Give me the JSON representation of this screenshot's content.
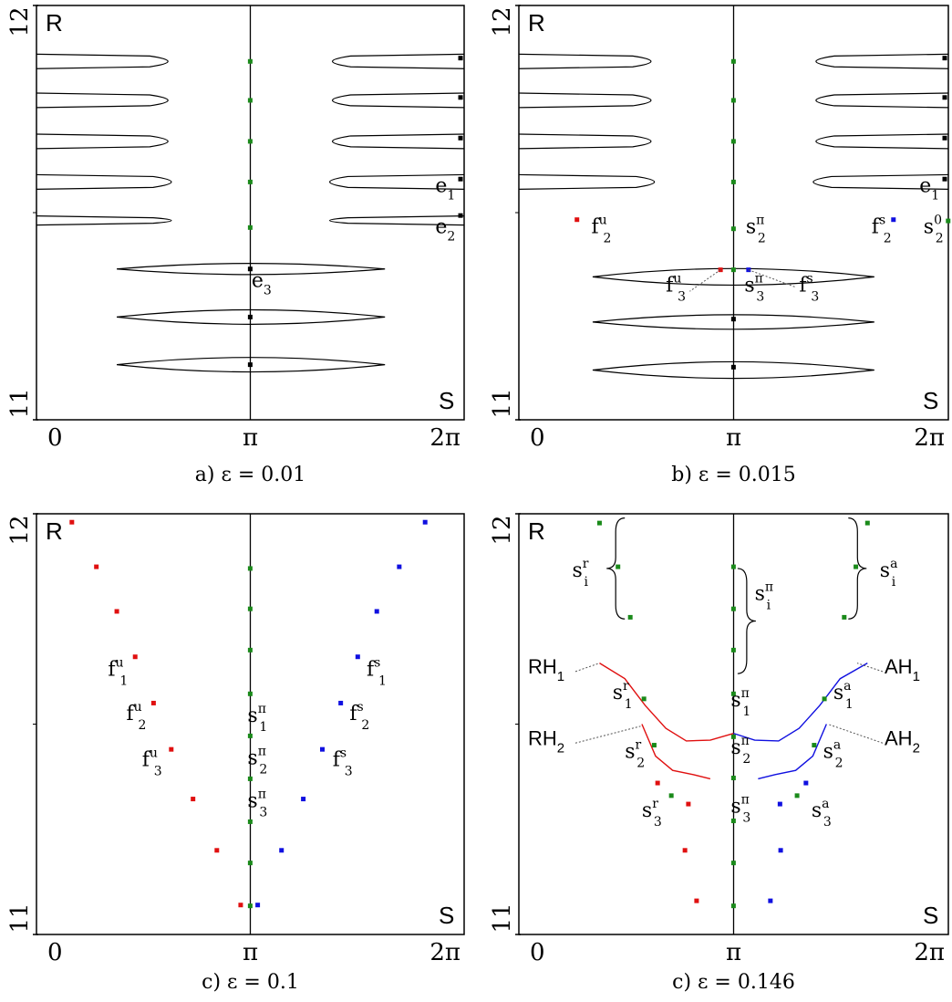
{
  "colors": {
    "green": "#1a8a1a",
    "red": "#e01010",
    "blue": "#1010e0",
    "black": "#000000"
  },
  "axes": {
    "x_ticks": [
      "0",
      "π",
      "2π"
    ],
    "y_min_label": "11",
    "y_max_label": "12",
    "y_axis_letter": "R",
    "x_axis_letter": "S"
  },
  "chart_data": [
    {
      "type": "scatter",
      "caption_prefix": "a)",
      "caption_eq": "ε = 0.01",
      "xlim": [
        0,
        6.2832
      ],
      "ylim": [
        11,
        12
      ],
      "xlabel": "S",
      "ylabel": "R",
      "vertical_line_x": 3.1416,
      "series": [
        {
          "color": "green",
          "points": [
            [
              3.14,
              11.865
            ],
            [
              3.14,
              11.771
            ],
            [
              3.14,
              11.672
            ],
            [
              3.14,
              11.574
            ],
            [
              3.14,
              11.464
            ]
          ]
        },
        {
          "color": "black",
          "points": [
            [
              3.14,
              11.364
            ],
            [
              3.14,
              11.248
            ],
            [
              3.14,
              11.133
            ],
            [
              6.23,
              11.873
            ],
            [
              6.23,
              11.778
            ],
            [
              6.23,
              11.68
            ],
            [
              6.23,
              11.581
            ],
            [
              6.23,
              11.493
            ]
          ]
        }
      ],
      "islands": [
        {
          "x": [
            0.0,
            2.2
          ],
          "y": 11.865,
          "h": 0.035
        },
        {
          "x": [
            0.0,
            2.2
          ],
          "y": 11.771,
          "h": 0.035
        },
        {
          "x": [
            0.0,
            2.2
          ],
          "y": 11.672,
          "h": 0.035
        },
        {
          "x": [
            0.0,
            2.25
          ],
          "y": 11.574,
          "h": 0.035
        },
        {
          "x": [
            0.0,
            2.25
          ],
          "y": 11.481,
          "h": 0.022
        },
        {
          "x": [
            4.08,
            6.28
          ],
          "y": 11.865,
          "h": 0.035
        },
        {
          "x": [
            4.08,
            6.28
          ],
          "y": 11.771,
          "h": 0.035
        },
        {
          "x": [
            4.08,
            6.28
          ],
          "y": 11.672,
          "h": 0.035
        },
        {
          "x": [
            4.04,
            6.28
          ],
          "y": 11.574,
          "h": 0.035
        },
        {
          "x": [
            4.04,
            6.28
          ],
          "y": 11.481,
          "h": 0.022
        },
        {
          "x": [
            1.18,
            5.12
          ],
          "y": 11.364,
          "h": 0.027
        },
        {
          "x": [
            1.18,
            5.12
          ],
          "y": 11.248,
          "h": 0.035
        },
        {
          "x": [
            1.18,
            5.12
          ],
          "y": 11.133,
          "h": 0.035
        }
      ],
      "annotations": [
        {
          "text": "e",
          "sub": "1",
          "x": 5.86,
          "y": 11.55
        },
        {
          "text": "e",
          "sub": "2",
          "x": 5.86,
          "y": 11.45
        },
        {
          "text": "e",
          "sub": "3",
          "x": 3.16,
          "y": 11.32
        }
      ]
    },
    {
      "type": "scatter",
      "caption_prefix": "b)",
      "caption_eq": "ε = 0.015",
      "xlim": [
        0,
        6.2832
      ],
      "ylim": [
        11,
        12
      ],
      "xlabel": "S",
      "ylabel": "R",
      "vertical_line_x": 3.1416,
      "series": [
        {
          "color": "green",
          "points": [
            [
              3.14,
              11.865
            ],
            [
              3.14,
              11.771
            ],
            [
              3.14,
              11.672
            ],
            [
              3.14,
              11.574
            ],
            [
              3.14,
              11.461
            ],
            [
              3.14,
              11.362
            ],
            [
              6.28,
              11.48
            ]
          ]
        },
        {
          "color": "red",
          "points": [
            [
              0.85,
              11.483
            ],
            [
              2.95,
              11.362
            ]
          ]
        },
        {
          "color": "blue",
          "points": [
            [
              5.48,
              11.483
            ],
            [
              3.36,
              11.362
            ]
          ]
        },
        {
          "color": "black",
          "points": [
            [
              3.14,
              11.243
            ],
            [
              3.14,
              11.127
            ],
            [
              6.23,
              11.873
            ],
            [
              6.23,
              11.778
            ],
            [
              6.23,
              11.68
            ],
            [
              6.23,
              11.581
            ]
          ]
        }
      ],
      "islands": [
        {
          "x": [
            0.0,
            2.2
          ],
          "y": 11.865,
          "h": 0.035
        },
        {
          "x": [
            0.0,
            2.2
          ],
          "y": 11.771,
          "h": 0.035
        },
        {
          "x": [
            0.0,
            2.2
          ],
          "y": 11.672,
          "h": 0.035
        },
        {
          "x": [
            0.0,
            2.25
          ],
          "y": 11.574,
          "h": 0.035
        },
        {
          "x": [
            4.08,
            6.28
          ],
          "y": 11.865,
          "h": 0.035
        },
        {
          "x": [
            4.08,
            6.28
          ],
          "y": 11.771,
          "h": 0.035
        },
        {
          "x": [
            4.08,
            6.28
          ],
          "y": 11.672,
          "h": 0.035
        },
        {
          "x": [
            4.04,
            6.28
          ],
          "y": 11.574,
          "h": 0.035
        },
        {
          "x": [
            1.08,
            5.2
          ],
          "y": 11.345,
          "h": 0.04
        },
        {
          "x": [
            1.08,
            5.2
          ],
          "y": 11.236,
          "h": 0.035
        },
        {
          "x": [
            1.08,
            5.2
          ],
          "y": 11.12,
          "h": 0.04
        }
      ],
      "annotations": [
        {
          "text": "e",
          "sub": "1",
          "x": 5.86,
          "y": 11.55
        },
        {
          "text": "f",
          "sup": "u",
          "sub": "2",
          "x": 1.06,
          "y": 11.45
        },
        {
          "text": "s",
          "sup": "π",
          "sub": "2",
          "x": 3.32,
          "y": 11.45
        },
        {
          "text": "f",
          "sup": "s",
          "sub": "2",
          "x": 5.16,
          "y": 11.45
        },
        {
          "text": "s",
          "sup": "0",
          "sub": "2",
          "x": 5.92,
          "y": 11.45
        },
        {
          "text": "f",
          "sup": "u",
          "sub": "3",
          "x": 2.15,
          "y": 11.31
        },
        {
          "text": "s",
          "sup": "π",
          "sub": "3",
          "x": 3.3,
          "y": 11.31
        },
        {
          "text": "f",
          "sup": "s",
          "sub": "3",
          "x": 4.1,
          "y": 11.31
        }
      ]
    },
    {
      "type": "scatter",
      "caption_prefix": "c)",
      "caption_eq": "ε = 0.1",
      "xlim": [
        0,
        6.2832
      ],
      "ylim": [
        11,
        12
      ],
      "xlabel": "S",
      "ylabel": "R",
      "vertical_line_x": 3.1416,
      "series": [
        {
          "color": "green",
          "points": [
            [
              3.14,
              11.87
            ],
            [
              3.14,
              11.774
            ],
            [
              3.14,
              11.676
            ],
            [
              3.14,
              11.572
            ],
            [
              3.14,
              11.472
            ],
            [
              3.14,
              11.37
            ],
            [
              3.14,
              11.268
            ],
            [
              3.14,
              11.17
            ],
            [
              3.14,
              11.068
            ]
          ]
        },
        {
          "color": "red",
          "points": [
            [
              0.52,
              11.98
            ],
            [
              0.88,
              11.874
            ],
            [
              1.18,
              11.768
            ],
            [
              1.45,
              11.66
            ],
            [
              1.72,
              11.55
            ],
            [
              1.98,
              11.44
            ],
            [
              2.3,
              11.322
            ],
            [
              2.65,
              11.2
            ],
            [
              3.0,
              11.07
            ]
          ]
        },
        {
          "color": "blue",
          "points": [
            [
              5.71,
              11.98
            ],
            [
              5.33,
              11.874
            ],
            [
              5.0,
              11.768
            ],
            [
              4.72,
              11.66
            ],
            [
              4.47,
              11.55
            ],
            [
              4.2,
              11.44
            ],
            [
              3.92,
              11.322
            ],
            [
              3.6,
              11.2
            ],
            [
              3.25,
              11.07
            ]
          ]
        }
      ],
      "annotations": [
        {
          "text": "f",
          "sup": "u",
          "sub": "1",
          "x": 1.05,
          "y": 11.615
        },
        {
          "text": "s",
          "sup": "π",
          "sub": "1",
          "x": 3.1,
          "y": 11.505
        },
        {
          "text": "f",
          "sup": "s",
          "sub": "1",
          "x": 4.85,
          "y": 11.615
        },
        {
          "text": "f",
          "sup": "u",
          "sub": "2",
          "x": 1.32,
          "y": 11.51
        },
        {
          "text": "s",
          "sup": "π",
          "sub": "2",
          "x": 3.1,
          "y": 11.405
        },
        {
          "text": "f",
          "sup": "s",
          "sub": "2",
          "x": 4.6,
          "y": 11.51
        },
        {
          "text": "f",
          "sup": "u",
          "sub": "3",
          "x": 1.55,
          "y": 11.4
        },
        {
          "text": "s",
          "sup": "π",
          "sub": "3",
          "x": 3.1,
          "y": 11.303
        },
        {
          "text": "f",
          "sup": "s",
          "sub": "3",
          "x": 4.35,
          "y": 11.4
        }
      ]
    },
    {
      "type": "line",
      "caption_prefix": "c)",
      "caption_eq": "ε = 0.146",
      "xlim": [
        0,
        6.2832
      ],
      "ylim": [
        11,
        12
      ],
      "xlabel": "S",
      "ylabel": "R",
      "vertical_line_x": 3.1416,
      "series": [
        {
          "color": "red",
          "points": [
            [
              1.18,
              11.645
            ],
            [
              1.55,
              11.608
            ],
            [
              1.85,
              11.544
            ],
            [
              2.15,
              11.49
            ],
            [
              2.45,
              11.46
            ],
            [
              2.8,
              11.462
            ],
            [
              3.14,
              11.478
            ]
          ]
        },
        {
          "color": "blue",
          "points": [
            [
              3.14,
              11.478
            ],
            [
              3.45,
              11.462
            ],
            [
              3.8,
              11.46
            ],
            [
              4.1,
              11.49
            ],
            [
              4.4,
              11.544
            ],
            [
              4.7,
              11.608
            ],
            [
              5.1,
              11.645
            ]
          ]
        },
        {
          "color": "red",
          "points": [
            [
              1.8,
              11.5
            ],
            [
              2.0,
              11.424
            ],
            [
              2.25,
              11.39
            ],
            [
              2.55,
              11.38
            ],
            [
              2.8,
              11.37
            ]
          ]
        },
        {
          "color": "blue",
          "points": [
            [
              3.5,
              11.37
            ],
            [
              3.75,
              11.38
            ],
            [
              4.05,
              11.39
            ],
            [
              4.3,
              11.424
            ],
            [
              4.5,
              11.5
            ]
          ]
        }
      ],
      "points": [
        {
          "color": "green",
          "points": [
            [
              1.18,
              11.978
            ],
            [
              1.45,
              11.874
            ],
            [
              1.63,
              11.754
            ],
            [
              3.14,
              11.874
            ],
            [
              3.14,
              11.774
            ],
            [
              3.14,
              11.676
            ],
            [
              3.14,
              11.572
            ],
            [
              3.14,
              11.47
            ],
            [
              3.14,
              11.372
            ],
            [
              3.14,
              11.27
            ],
            [
              3.14,
              11.17
            ],
            [
              3.14,
              11.068
            ],
            [
              5.1,
              11.978
            ],
            [
              4.93,
              11.874
            ],
            [
              4.76,
              11.754
            ],
            [
              1.83,
              11.56
            ],
            [
              4.47,
              11.56
            ],
            [
              1.98,
              11.45
            ],
            [
              4.32,
              11.45
            ],
            [
              2.23,
              11.33
            ],
            [
              4.07,
              11.33
            ]
          ]
        },
        {
          "color": "red",
          "points": [
            [
              2.03,
              11.36
            ],
            [
              2.48,
              11.31
            ],
            [
              2.43,
              11.2
            ],
            [
              2.6,
              11.08
            ]
          ]
        },
        {
          "color": "blue",
          "points": [
            [
              4.2,
              11.36
            ],
            [
              3.82,
              11.31
            ],
            [
              3.83,
              11.2
            ],
            [
              3.68,
              11.08
            ]
          ]
        }
      ],
      "curve_labels": [
        "RH1",
        "RH2",
        "AH1",
        "AH2"
      ],
      "annotations": [
        {
          "text": "s",
          "sup": "r",
          "sub": "i",
          "x": 0.78,
          "y": 11.85
        },
        {
          "text": "s",
          "sup": "π",
          "sub": "i",
          "x": 3.45,
          "y": 11.795
        },
        {
          "text": "s",
          "sup": "a",
          "sub": "i",
          "x": 5.28,
          "y": 11.85
        },
        {
          "text": "s",
          "sup": "r",
          "sub": "1",
          "x": 1.37,
          "y": 11.56
        },
        {
          "text": "s",
          "sup": "π",
          "sub": "1",
          "x": 3.1,
          "y": 11.542
        },
        {
          "text": "s",
          "sup": "a",
          "sub": "1",
          "x": 4.6,
          "y": 11.56
        },
        {
          "text": "s",
          "sup": "r",
          "sub": "2",
          "x": 1.55,
          "y": 11.42
        },
        {
          "text": "s",
          "sup": "π",
          "sub": "2",
          "x": 3.1,
          "y": 11.43
        },
        {
          "text": "s",
          "sup": "a",
          "sub": "2",
          "x": 4.45,
          "y": 11.42
        },
        {
          "text": "s",
          "sup": "r",
          "sub": "3",
          "x": 1.8,
          "y": 11.28
        },
        {
          "text": "s",
          "sup": "π",
          "sub": "3",
          "x": 3.1,
          "y": 11.29
        },
        {
          "text": "s",
          "sup": "a",
          "sub": "3",
          "x": 4.28,
          "y": 11.28
        }
      ]
    }
  ]
}
